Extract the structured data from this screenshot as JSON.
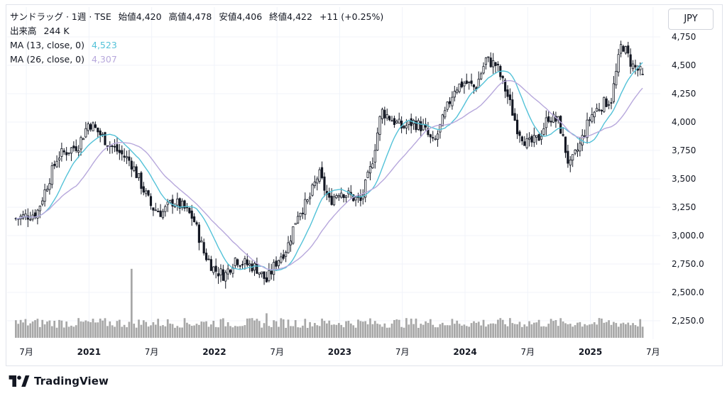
{
  "legend": {
    "symbol": "サンドラッグ · 1週 · TSE",
    "ohlc": [
      {
        "label": "始値",
        "value": "4,420"
      },
      {
        "label": "高値",
        "value": "4,478"
      },
      {
        "label": "安値",
        "value": "4,406"
      },
      {
        "label": "終値",
        "value": "4,422"
      }
    ],
    "change": "+11 (+0.25%)",
    "volume_label": "出来高",
    "volume_value": "244 K",
    "ma13_label": "MA (13, close, 0)",
    "ma13_value": "4,523",
    "ma26_label": "MA (26, close, 0)",
    "ma26_value": "4,307"
  },
  "currency": "JPY",
  "brand": "TradingView",
  "colors": {
    "candle": "#131722",
    "ma13": "#53c2d8",
    "ma26": "#b7a8dc",
    "volume": "#8a8a8a",
    "grid": "#f0f3fa"
  },
  "chart_data": {
    "type": "candlestick",
    "interval": "1週",
    "currency": "JPY",
    "y_ticks": [
      "4,750",
      "4,500",
      "4,250",
      "4,000",
      "3,750",
      "3,500",
      "3,250",
      "3,000.0",
      "2,750.0",
      "2,500.0",
      "2,250.0"
    ],
    "y_tick_values": [
      4750,
      4500,
      4250,
      4000,
      3750,
      3500,
      3250,
      3000,
      2750,
      2500,
      2250
    ],
    "ylim": [
      2150,
      4950
    ],
    "x_ticks": [
      {
        "label": "7月",
        "date": "2020-07",
        "bold": false
      },
      {
        "label": "2021",
        "date": "2021-01",
        "bold": true
      },
      {
        "label": "7月",
        "date": "2021-07",
        "bold": false
      },
      {
        "label": "2022",
        "date": "2022-01",
        "bold": true
      },
      {
        "label": "7月",
        "date": "2022-07",
        "bold": false
      },
      {
        "label": "2023",
        "date": "2023-01",
        "bold": true
      },
      {
        "label": "7月",
        "date": "2023-07",
        "bold": false
      },
      {
        "label": "2024",
        "date": "2024-01",
        "bold": true
      },
      {
        "label": "7月",
        "date": "2024-07",
        "bold": false
      },
      {
        "label": "2025",
        "date": "2025-01",
        "bold": true
      },
      {
        "label": "7月",
        "date": "2025-07",
        "bold": false
      }
    ],
    "period": {
      "start": "2020-06",
      "end": "2025-06"
    },
    "price_keypoints": [
      [
        "2020-06",
        3150
      ],
      [
        "2020-08",
        3200
      ],
      [
        "2020-10",
        3700
      ],
      [
        "2020-12",
        3800
      ],
      [
        "2021-01",
        4000
      ],
      [
        "2021-03",
        3800
      ],
      [
        "2021-05",
        3650
      ],
      [
        "2021-06",
        3450
      ],
      [
        "2021-07",
        3250
      ],
      [
        "2021-08",
        3200
      ],
      [
        "2021-09",
        3300
      ],
      [
        "2021-10",
        3250
      ],
      [
        "2021-11",
        3150
      ],
      [
        "2021-12",
        2850
      ],
      [
        "2022-01",
        2700
      ],
      [
        "2022-02",
        2650
      ],
      [
        "2022-03",
        2800
      ],
      [
        "2022-04",
        2750
      ],
      [
        "2022-05",
        2720
      ],
      [
        "2022-06",
        2600
      ],
      [
        "2022-07",
        2780
      ],
      [
        "2022-08",
        2900
      ],
      [
        "2022-09",
        3200
      ],
      [
        "2022-10",
        3300
      ],
      [
        "2022-11",
        3550
      ],
      [
        "2022-12",
        3300
      ],
      [
        "2023-01",
        3400
      ],
      [
        "2023-03",
        3300
      ],
      [
        "2023-04",
        3600
      ],
      [
        "2023-05",
        4100
      ],
      [
        "2023-07",
        3950
      ],
      [
        "2023-08",
        4000
      ],
      [
        "2023-09",
        3950
      ],
      [
        "2023-10",
        3800
      ],
      [
        "2023-11",
        4050
      ],
      [
        "2023-12",
        4300
      ],
      [
        "2024-01",
        4350
      ],
      [
        "2024-02",
        4300
      ],
      [
        "2024-03",
        4550
      ],
      [
        "2024-04",
        4500
      ],
      [
        "2024-05",
        4250
      ],
      [
        "2024-06",
        3950
      ],
      [
        "2024-07",
        3800
      ],
      [
        "2024-08",
        3850
      ],
      [
        "2024-09",
        4050
      ],
      [
        "2024-10",
        4000
      ],
      [
        "2024-11",
        3600
      ],
      [
        "2024-12",
        3800
      ],
      [
        "2025-01",
        4050
      ],
      [
        "2025-02",
        4150
      ],
      [
        "2025-03",
        4200
      ],
      [
        "2025-04",
        4700
      ],
      [
        "2025-05",
        4500
      ],
      [
        "2025-06",
        4422
      ]
    ],
    "volume_keypoints": [
      [
        "2021-05",
        900
      ],
      [
        "2022-06",
        320
      ]
    ],
    "series": [
      {
        "name": "MA (13, close, 0)",
        "last": 4523
      },
      {
        "name": "MA (26, close, 0)",
        "last": 4307
      }
    ]
  }
}
